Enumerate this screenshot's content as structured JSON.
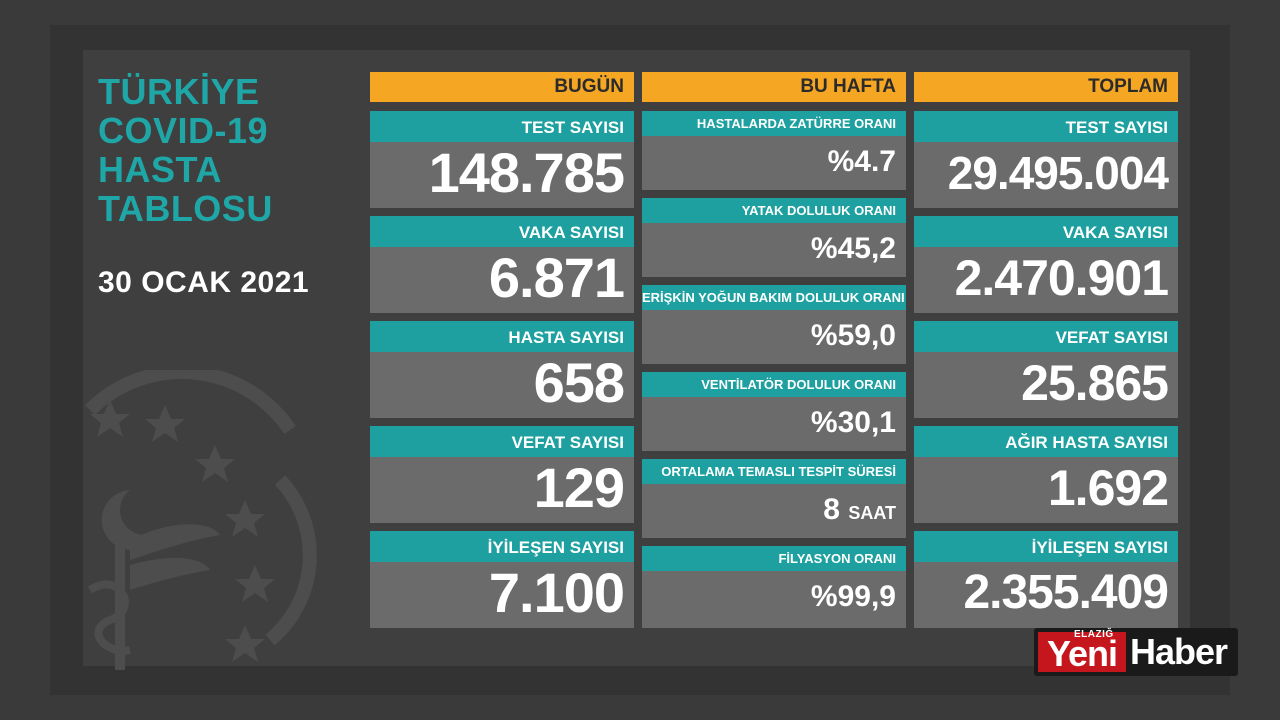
{
  "title_lines": [
    "TÜRKİYE",
    "COVID-19",
    "HASTA",
    "TABLOSU"
  ],
  "date": "30 OCAK 2021",
  "headers": {
    "today": "BUGÜN",
    "week": "BU HAFTA",
    "total": "TOPLAM"
  },
  "today": [
    {
      "label": "TEST SAYISI",
      "value": "148.785"
    },
    {
      "label": "VAKA SAYISI",
      "value": "6.871"
    },
    {
      "label": "HASTA SAYISI",
      "value": "658"
    },
    {
      "label": "VEFAT SAYISI",
      "value": "129"
    },
    {
      "label": "İYİLEŞEN SAYISI",
      "value": "7.100"
    }
  ],
  "week": [
    {
      "label": "HASTALARDA ZATÜRRE ORANI",
      "value": "%4.7"
    },
    {
      "label": "YATAK DOLULUK ORANI",
      "value": "%45,2"
    },
    {
      "label": "ERİŞKİN YOĞUN BAKIM DOLULUK ORANI",
      "value": "%59,0"
    },
    {
      "label": "VENTİLATÖR DOLULUK ORANI",
      "value": "%30,1"
    },
    {
      "label": "ORTALAMA TEMASLI TESPİT SÜRESİ",
      "value": "8",
      "unit": "SAAT"
    },
    {
      "label": "FİLYASYON ORANI",
      "value": "%99,9"
    }
  ],
  "total": [
    {
      "label": "TEST SAYISI",
      "value": "29.495.004"
    },
    {
      "label": "VAKA SAYISI",
      "value": "2.470.901"
    },
    {
      "label": "VEFAT SAYISI",
      "value": "25.865"
    },
    {
      "label": "AĞIR HASTA SAYISI",
      "value": "1.692"
    },
    {
      "label": "İYİLEŞEN SAYISI",
      "value": "2.355.409"
    }
  ],
  "logo": {
    "small": "ELAZIĞ",
    "part1": "Yeni",
    "part2": "Haber"
  },
  "colors": {
    "teal": "#1ea0a0",
    "orange": "#f5a623",
    "card": "#6b6b6b",
    "title": "#1fa7a7",
    "logo_red": "#c4161c"
  },
  "emblem_icon": "ministry-of-health-emblem-icon"
}
